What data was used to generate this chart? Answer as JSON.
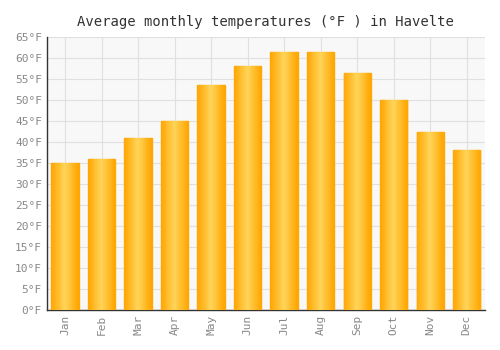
{
  "months": [
    "Jan",
    "Feb",
    "Mar",
    "Apr",
    "May",
    "Jun",
    "Jul",
    "Aug",
    "Sep",
    "Oct",
    "Nov",
    "Dec"
  ],
  "values": [
    35.0,
    36.0,
    41.0,
    45.0,
    53.5,
    58.0,
    61.5,
    61.5,
    56.5,
    50.0,
    42.5,
    38.0
  ],
  "bar_color_outer": "#FFA500",
  "bar_color_inner": "#FFD55A",
  "title": "Average monthly temperatures (°F ) in Havelte",
  "ylim": [
    0,
    65
  ],
  "ytick_step": 5,
  "background_color": "#ffffff",
  "plot_bg_color": "#f8f8f8",
  "grid_color": "#e0e0e0",
  "title_fontsize": 10,
  "tick_fontsize": 8,
  "font_family": "monospace",
  "tick_color": "#888888",
  "spine_color": "#333333",
  "bar_width": 0.75
}
